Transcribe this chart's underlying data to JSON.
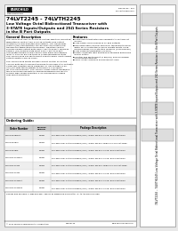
{
  "bg_color": "#e8e8e8",
  "page_bg": "#ffffff",
  "title_main": "74LVT2245 - 74LVTH2245",
  "title_sub1": "Low Voltage Octal Bidirectional Transceiver with",
  "title_sub2": "3-STATE Inputs/Outputs and 25Ω Series Resistors",
  "title_sub3": "in the B Port Outputs",
  "fairchild_logo_text": "FAIRCHILD",
  "doc_number": "DS009733 - 005",
  "doc_date": "Discontinued 2002",
  "section_general": "General Description",
  "section_features": "Features",
  "section_ordering": "Ordering Guide:",
  "ordering_rows": [
    [
      "74LVT2245MSA",
      "M20B",
      "20-Lead Small Outline Package (SOIC), JEDEC MS-013, 0.300\" Bus 5-Volt Wide"
    ],
    [
      "74LVT2245SJ",
      "M20D",
      "20-Lead Small Outline Package (SOIC), JEDEC MS-012, Wide 3.0V or 5-Volt Wide"
    ],
    [
      "74LVT2245M",
      "M20B",
      "20-Lead Small Outline Package (SOIC), JEDEC MS-013, 0.300\" Bus 5-Volt Wide"
    ],
    [
      "74LVTH2245MSA",
      "M20B",
      "20-Lead Small Outline Package (SOIC), JEDEC MS-013, 0.300\" Bus 5-Volt Wide"
    ],
    [
      "74LVTH2245SJ",
      "M20D",
      "20-Lead Small Outline Package (SOIC), JEDEC MS-012, Wide 3.0V or 5-Volt Wide"
    ],
    [
      "74LVTH2245M",
      "M20B",
      "20-Lead Small Outline Package (SOIC), JEDEC MS-013, 0.300\" Bus 5-Volt Wide"
    ],
    [
      "74LVTH2245MSA",
      "M20B",
      "20-Lead Small Outline Package (SOIC), JEDEC MS-013, 0.300\" Bus 5-Volt Wide"
    ],
    [
      "74LVTH2245MSX",
      "M20B",
      "20-Lead Small Outline Package (SOIC), JEDEC MS-013, 0.300\" Bus 5-Volt Wide"
    ]
  ],
  "side_label": "74LVT2245 – 74LVTH2245 Low Voltage Octal Bidirectional Transceiver with 3-STATE Inputs/Outputs and 25Ω Series Resistors in the B Port Outputs",
  "footer_left": "© 2002 Fairchild Semiconductor Corporation",
  "footer_mid": "DS009733",
  "footer_right": "www.fairchildsemi.com",
  "gen_lines": [
    "The 74LVT2245 and 74LVTH2245 contain eight non-inverting",
    "bidirectional control type 3-STATE Outputs (see output",
    "functions) for bus-oriented applications. The Transceiver",
    "controls (OE) and direction can be selected of data flow",
    "through the bidirectional transceiver. Direction control",
    "enables enable output data from A-Port to B-Port, whereas",
    "passive (OE) enables data input from A-Port to B-Port.",
    "This design enables inputs above VDD while maintaining",
    "level to GND by placing them in a high impedance state.",
    "The 74LVTH2245 bus pin tolerant 3-Port 5-PORT input clamps",
    "output resistors are 25 ohms.",
    "",
    "The 74LVTH2245 inputs include current control on all the",
    "74LVTH data pins to prevent damage to bus-pins at 5-voltages.",
    "Series bus-resistors were designed for low voltage (3.3V-",
    "VCC) but with the possibility to transfer a VTH Series",
    "for a 5V environment. The 74LVTH Series output compensa-",
    "tion is synchronized with an advanced BiCMOS-process to",
    "provide high speed operation 3-3V and below including",
    "chip select operations."
  ],
  "feat_lines": [
    "▪ Input and output interface capability to systems at",
    "  5V bus",
    "▪ Low-power dual release in all Bus outputs",
    "▪ Exclusive data channel selection: the Board to band-",
    "  width for 3.3 Potential or more circuits inputs using",
    "  programming, ICC protection memory (74LVTH2245)",
    "▪ Low quiescent/indication (on BUS)",
    "▪ Power Up/Down high impedance provides glitch-free",
    "  power supply",
    "▪ Control bus pin-tolerant (5 pin(5V)) and pin driving",
    "  3.5 selection defined",
    "▪ SCCT or performance enhancement VDD"
  ]
}
